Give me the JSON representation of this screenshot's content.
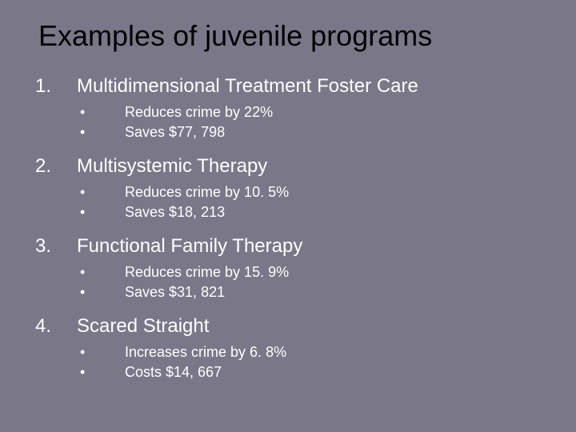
{
  "background_color": "#7a7789",
  "text_color": "#ffffff",
  "title_color": "#000000",
  "title": "Examples of juvenile programs",
  "title_fontsize": 36,
  "item_fontsize": 24,
  "bullet_fontsize": 18,
  "items": [
    {
      "number": "1.",
      "title": "Multidimensional Treatment Foster Care",
      "bullets": [
        "Reduces crime by 22%",
        "Saves $77, 798"
      ]
    },
    {
      "number": "2.",
      "title": "Multisystemic Therapy",
      "bullets": [
        "Reduces crime by 10. 5%",
        "Saves $18, 213"
      ]
    },
    {
      "number": "3.",
      "title": "Functional Family Therapy",
      "bullets": [
        "Reduces crime by 15. 9%",
        "Saves $31, 821"
      ]
    },
    {
      "number": "4.",
      "title": "Scared Straight",
      "bullets": [
        "Increases crime by 6. 8%",
        "Costs $14, 667"
      ]
    }
  ]
}
